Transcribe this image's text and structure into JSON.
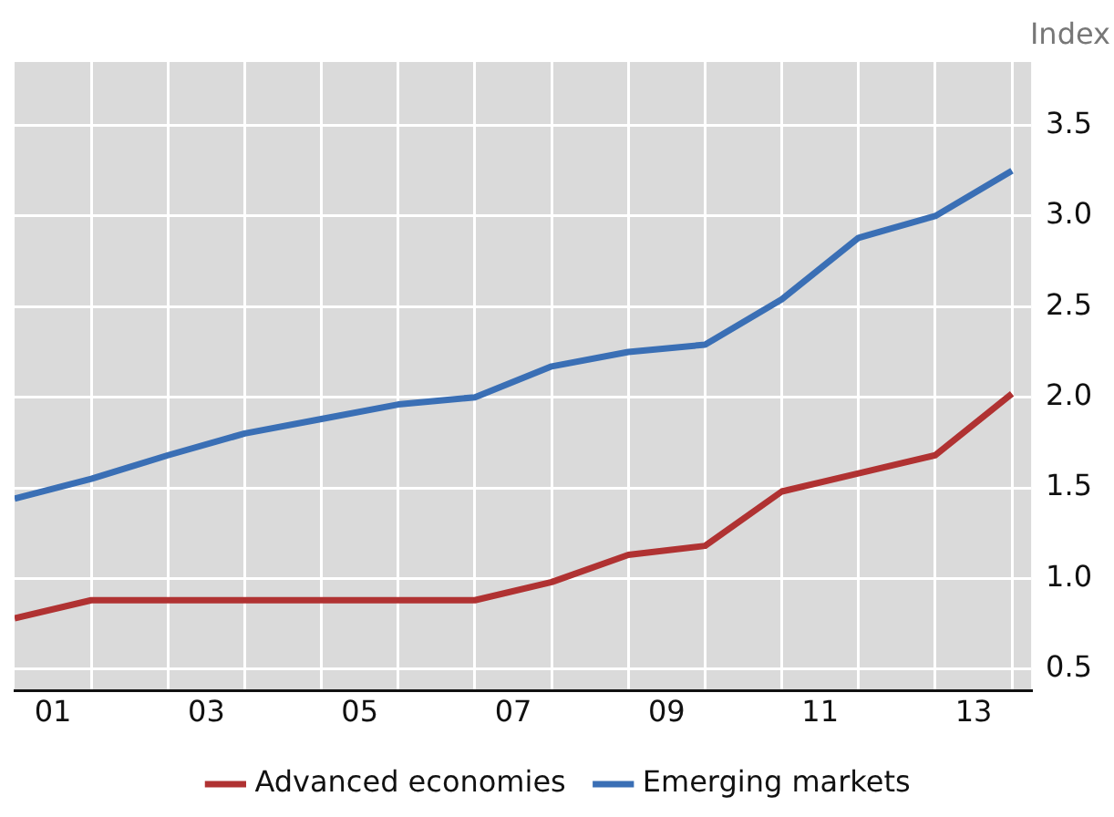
{
  "chart_data": {
    "type": "line",
    "ylabel": "Index",
    "legend": "bottom",
    "grid": true,
    "marker": "none",
    "line_style": "solid",
    "x": [
      0.5,
      1.5,
      2.5,
      3.5,
      4.5,
      5.5,
      6.5,
      7.5,
      8.5,
      9.5,
      10.5,
      11.5,
      12.5,
      13.5
    ],
    "xlim": [
      0.5,
      13.75
    ],
    "xticks": [
      {
        "value": 1,
        "label": "01"
      },
      {
        "value": 1.5,
        "label": null
      },
      {
        "value": 2.5,
        "label": null
      },
      {
        "value": 3,
        "label": "03"
      },
      {
        "value": 3.5,
        "label": null
      },
      {
        "value": 4.5,
        "label": null
      },
      {
        "value": 5,
        "label": "05"
      },
      {
        "value": 5.5,
        "label": null
      },
      {
        "value": 6.5,
        "label": null
      },
      {
        "value": 7,
        "label": "07"
      },
      {
        "value": 7.5,
        "label": null
      },
      {
        "value": 8.5,
        "label": null
      },
      {
        "value": 9,
        "label": "09"
      },
      {
        "value": 9.5,
        "label": null
      },
      {
        "value": 10.5,
        "label": null
      },
      {
        "value": 11,
        "label": "11"
      },
      {
        "value": 11.5,
        "label": null
      },
      {
        "value": 12.5,
        "label": null
      },
      {
        "value": 13,
        "label": "13"
      },
      {
        "value": 13.5,
        "label": null
      }
    ],
    "ylim": [
      0.38,
      3.85
    ],
    "yticks": [
      {
        "value": 0.5,
        "label": "0.5"
      },
      {
        "value": 1,
        "label": "1.0"
      },
      {
        "value": 1.5,
        "label": "1.5"
      },
      {
        "value": 2,
        "label": "2.0"
      },
      {
        "value": 2.5,
        "label": "2.5"
      },
      {
        "value": 3,
        "label": "3.0"
      },
      {
        "value": 3.5,
        "label": "3.5"
      }
    ],
    "series": [
      {
        "name": "Advanced economies",
        "color": "#b03232",
        "values": [
          0.78,
          0.88,
          0.88,
          0.88,
          0.88,
          0.88,
          0.88,
          0.98,
          1.13,
          1.18,
          1.48,
          1.58,
          1.68,
          2.02
        ]
      },
      {
        "name": "Emerging markets",
        "color": "#3a6fb5",
        "values": [
          1.44,
          1.55,
          1.68,
          1.8,
          1.88,
          1.96,
          2.0,
          2.17,
          2.25,
          2.29,
          2.54,
          2.88,
          3.0,
          3.25
        ]
      }
    ]
  }
}
